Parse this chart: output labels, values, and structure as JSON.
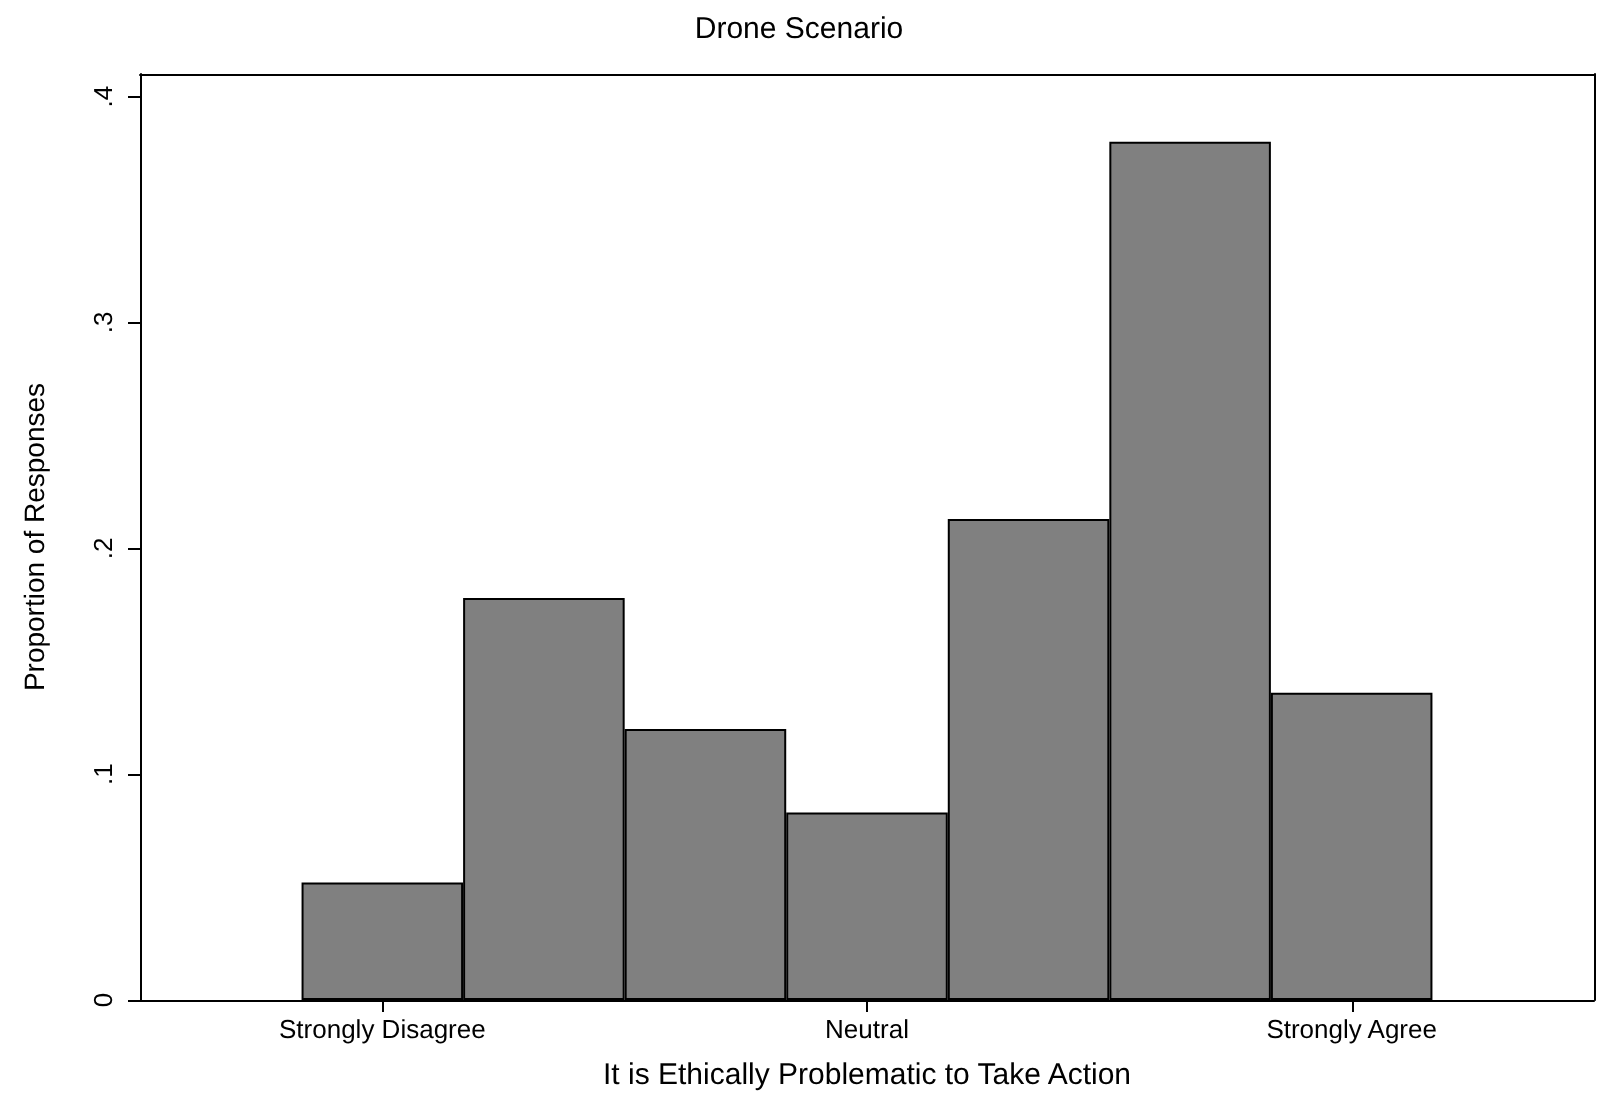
{
  "chart_data": {
    "type": "bar",
    "title": "Drone Scenario",
    "xlabel": "It is Ethically Problematic to Take Action",
    "ylabel": "Proportion of Responses",
    "categories": [
      null,
      "Strongly Disagree",
      null,
      null,
      "Neutral",
      null,
      null,
      "Strongly Agree",
      null
    ],
    "values": [
      null,
      0.052,
      0.178,
      0.12,
      0.083,
      0.213,
      0.38,
      0.136,
      null
    ],
    "color": "#808080",
    "ylim": [
      0,
      0.41
    ],
    "yticks": [
      0,
      {
        "value": 0.1,
        "label": ".1"
      },
      {
        "value": 0.2,
        "label": ".2"
      },
      {
        "value": 0.3,
        "label": ".3"
      },
      {
        "value": 0.4,
        "label": ".4"
      }
    ],
    "grid": false
  }
}
